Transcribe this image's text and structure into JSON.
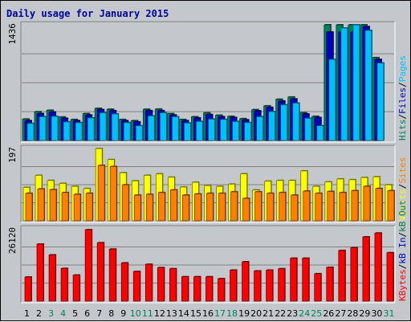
{
  "chart_data": {
    "type": "bar",
    "title": "Daily usage for January 2015",
    "categories": [
      "1",
      "2",
      "3",
      "4",
      "5",
      "6",
      "7",
      "8",
      "9",
      "10",
      "11",
      "12",
      "13",
      "14",
      "15",
      "16",
      "17",
      "18",
      "19",
      "20",
      "21",
      "22",
      "23",
      "24",
      "25",
      "26",
      "27",
      "28",
      "29",
      "30",
      "31"
    ],
    "weekend_categories": [
      "3",
      "4",
      "10",
      "11",
      "17",
      "18",
      "24",
      "25",
      "31"
    ],
    "colors": {
      "weekday_label": "#000000",
      "weekend_label": "#00805c",
      "hits": "#00805c",
      "files": "#0000c0",
      "pages": "#00c0ff",
      "visits": "#ffff00",
      "sites": "#ff8000",
      "kb_out": "#000080",
      "kb_in": "#008040",
      "kb_f": "#ff0000"
    },
    "panels": [
      {
        "id": "hits-files-pages",
        "ymax": 1436,
        "ytick_label": "1436",
        "legend": [
          {
            "text": "Hits",
            "color": "#00805c"
          },
          {
            "text": "/",
            "color": "#000000"
          },
          {
            "text": "Files",
            "color": "#0000c0"
          },
          {
            "text": "/",
            "color": "#000000"
          },
          {
            "text": "Pages",
            "color": "#00c0ff"
          }
        ],
        "series": [
          {
            "name": "Hits",
            "color": "#00805c",
            "values": [
              266,
              357,
              375,
              292,
              261,
              334,
              399,
              388,
              261,
              246,
              388,
              390,
              334,
              261,
              295,
              343,
              314,
              300,
              271,
              383,
              430,
              512,
              540,
              344,
              300,
              1436,
              1436,
              1436,
              1436,
              1029,
              0
            ]
          },
          {
            "name": "Files",
            "color": "#0000c0",
            "values": [
              246,
              334,
              353,
              275,
              246,
              316,
              383,
              370,
              246,
              231,
              370,
              370,
              316,
              246,
              280,
              322,
              295,
              285,
              256,
              368,
              411,
              490,
              516,
              329,
              285,
              1347,
              1347,
              1347,
              1414,
              1007,
              0
            ]
          },
          {
            "name": "Pages",
            "color": "#00c0ff",
            "values": [
              212,
              295,
              300,
              231,
              221,
              280,
              344,
              329,
              222,
              183,
              305,
              344,
              295,
              217,
              236,
              265,
              261,
              236,
              222,
              295,
              358,
              443,
              464,
              276,
              183,
              1007,
              1397,
              1436,
              1367,
              962,
              0
            ]
          }
        ]
      },
      {
        "id": "visits-sites",
        "ymax": 197,
        "ytick_label": "197",
        "legend": [
          {
            "text": "Visits",
            "color": "#ffff00"
          },
          {
            "text": "/",
            "color": "#000000"
          },
          {
            "text": "Sites",
            "color": "#ff8000"
          }
        ],
        "series": [
          {
            "name": "Visits",
            "color": "#ffff00",
            "values": [
              91,
              124,
              110,
              102,
              94,
              88,
              197,
              167,
              131,
              109,
              124,
              128,
              119,
              92,
              105,
              96,
              94,
              100,
              128,
              84,
              108,
              110,
              110,
              136,
              94,
              106,
              114,
              112,
              118,
              120,
              98
            ]
          },
          {
            "name": "Sites",
            "color": "#ff8000",
            "values": [
              75,
              87,
              85,
              77,
              72,
              75,
              151,
              148,
              98,
              70,
              72,
              77,
              84,
              70,
              73,
              75,
              75,
              79,
              61,
              79,
              75,
              77,
              70,
              81,
              75,
              80,
              77,
              82,
              94,
              88,
              82
            ]
          }
        ]
      },
      {
        "id": "kbytes",
        "ymax": 26120,
        "ytick_label": "26120",
        "legend": [
          {
            "text": "KBytes",
            "color": "#ff0000"
          },
          {
            "text": "/",
            "color": "#000000"
          },
          {
            "text": "kB In",
            "color": "#0000c0"
          },
          {
            "text": "/",
            "color": "#000000"
          },
          {
            "text": "kB Out",
            "color": "#008040"
          }
        ],
        "series": [
          {
            "name": "KBytes",
            "color": "#ff0000",
            "values": [
              8700,
              20600,
              16700,
              11800,
              9400,
              25800,
              21100,
              18800,
              13800,
              10700,
              13300,
              12100,
              11700,
              8800,
              8800,
              8800,
              8100,
              11200,
              14200,
              10900,
              11200,
              11700,
              15500,
              15500,
              9900,
              12200,
              18300,
              19300,
              23200,
              24600,
              17500
            ]
          }
        ]
      }
    ]
  }
}
